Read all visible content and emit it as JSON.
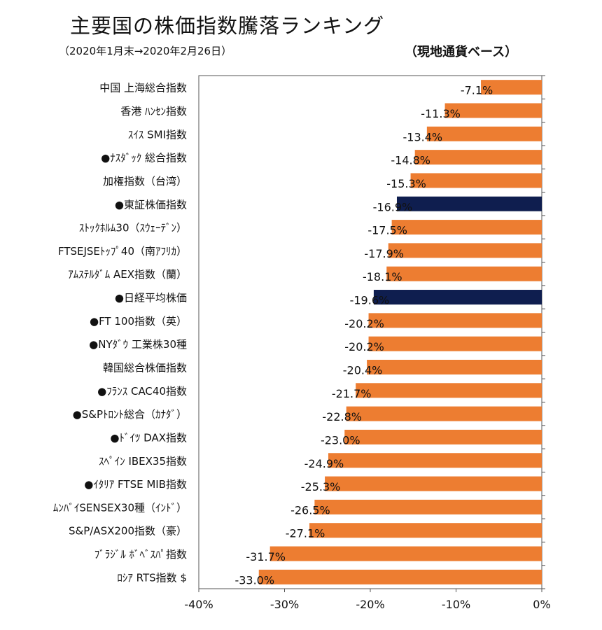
{
  "header": {
    "title": "主要国の株価指数騰落ランキング",
    "subtitle": "（2020年1月末→2020年2月26日）",
    "basis": "（現地通貨ベース）"
  },
  "colors": {
    "default": "#ED7D31",
    "highlight": "#0F1E4F"
  },
  "chart_data": {
    "type": "bar",
    "orientation": "horizontal",
    "title": "主要国の株価指数騰落ランキング",
    "xlim": [
      -40,
      0
    ],
    "xticks": [
      "-40%",
      "-30%",
      "-20%",
      "-10%",
      "0%"
    ],
    "xtick_values": [
      -40,
      -30,
      -20,
      -10,
      0
    ],
    "categories": [
      "中国 上海総合指数",
      "香港 ﾊﾝｾﾝ指数",
      "ｽｲｽ SMI指数",
      "●ﾅｽﾀﾞｯｸ 総合指数",
      "加権指数（台湾）",
      "●東証株価指数",
      "ｽﾄｯｸﾎﾙﾑ30（ｽｳｪｰﾃﾞﾝ）",
      "FTSEJSEﾄｯﾌﾟ40（南ｱﾌﾘｶ）",
      "ｱﾑｽﾃﾙﾀﾞﾑ AEX指数（蘭）",
      "●日経平均株価",
      "●FT 100指数（英）",
      "●NYﾀﾞｳ 工業株30種",
      "韓国総合株価指数",
      "●ﾌﾗﾝｽ CAC40指数",
      "●S&Pﾄﾛﾝﾄ総合（ｶﾅﾀﾞ）",
      "●ﾄﾞｲﾂ DAX指数",
      "ｽﾍﾟｲﾝ IBEX35指数",
      "●ｲﾀﾘｱ FTSE MIB指数",
      "ﾑﾝﾊﾞｲSENSEX30種（ｲﾝﾄﾞ）",
      "S&P/ASX200指数（豪）",
      "ﾌﾞﾗｼﾞﾙ ﾎﾞﾍﾞｽﾊﾟ指数",
      "ﾛｼｱ RTS指数 $"
    ],
    "values": [
      -7.1,
      -11.3,
      -13.4,
      -14.8,
      -15.3,
      -16.9,
      -17.5,
      -17.9,
      -18.1,
      -19.6,
      -20.2,
      -20.2,
      -20.4,
      -21.7,
      -22.8,
      -23.0,
      -24.9,
      -25.3,
      -26.5,
      -27.1,
      -31.7,
      -33.0
    ],
    "labels": [
      "-7.1%",
      "-11.3%",
      "-13.4%",
      "-14.8%",
      "-15.3%",
      "-16.9%",
      "-17.5%",
      "-17.9%",
      "-18.1%",
      "-19.6%",
      "-20.2%",
      "-20.2%",
      "-20.4%",
      "-21.7%",
      "-22.8%",
      "-23.0%",
      "-24.9%",
      "-25.3%",
      "-26.5%",
      "-27.1%",
      "-31.7%",
      "-33.0%"
    ],
    "highlighted": [
      "●東証株価指数",
      "●日経平均株価"
    ]
  }
}
